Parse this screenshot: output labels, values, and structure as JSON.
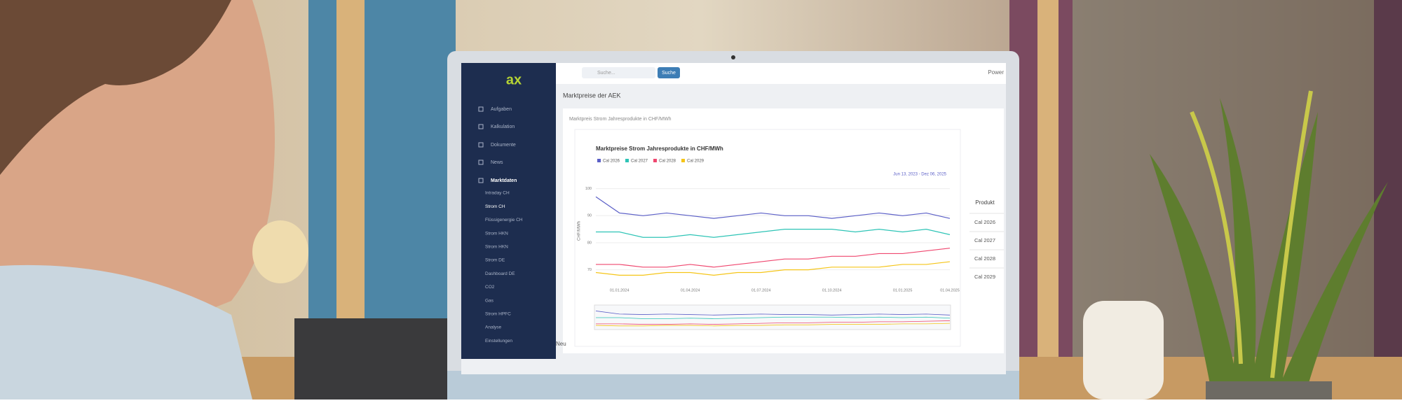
{
  "sidebar": {
    "logo": "ax",
    "items": [
      "Aufgaben",
      "Kalkulation",
      "Dokumente",
      "News",
      "Marktdaten"
    ],
    "subitems": [
      "Intraday CH",
      "Strom CH",
      "Flüssigenergie CH",
      "Strom HKN",
      "Strom HKN",
      "Strom DE",
      "Dashboard DE",
      "CO2",
      "Gas",
      "Strom HPFC",
      "Analyse",
      "Einstellungen"
    ]
  },
  "topbar": {
    "search_placeholder": "Suche...",
    "search_button": "Suche",
    "brand": "Power"
  },
  "page": {
    "title": "Marktpreise der AEK",
    "card_title": "Marktpreis Strom Jahresprodukte in CHF/MWh",
    "footer": "Neu"
  },
  "table": {
    "header": "Produkt",
    "rows": [
      "Cal 2026",
      "Cal 2027",
      "Cal 2028",
      "Cal 2029"
    ]
  },
  "chart_data": {
    "type": "line",
    "title": "Marktpreise Strom Jahresprodukte in CHF/MWh",
    "y_label": "CHF/MWh",
    "date_range": "Jun 13, 2023 - Dez 06, 2025",
    "categories": [
      null,
      "01.01.2024",
      null,
      null,
      "01.04.2024",
      null,
      null,
      "01.07.2024",
      null,
      null,
      "01.10.2024",
      null,
      null,
      "01.01.2025",
      null,
      "01.04.2025"
    ],
    "series": [
      {
        "name": "Cal 2026",
        "color": "#5b5fc7",
        "values": [
          97,
          91,
          90,
          91,
          90,
          89,
          90,
          91,
          90,
          90,
          89,
          90,
          91,
          90,
          91,
          89
        ]
      },
      {
        "name": "Cal 2027",
        "color": "#2ec4b6",
        "values": [
          84,
          84,
          82,
          82,
          83,
          82,
          83,
          84,
          85,
          85,
          85,
          84,
          85,
          84,
          85,
          83
        ]
      },
      {
        "name": "Cal 2028",
        "color": "#ef476f",
        "values": [
          72,
          72,
          71,
          71,
          72,
          71,
          72,
          73,
          74,
          74,
          75,
          75,
          76,
          76,
          77,
          78
        ]
      },
      {
        "name": "Cal 2029",
        "color": "#f5c518",
        "values": [
          69,
          68,
          68,
          69,
          69,
          68,
          69,
          69,
          70,
          70,
          71,
          71,
          71,
          72,
          72,
          73
        ]
      }
    ],
    "ylim": [
      65,
      103
    ],
    "yticks": [
      70,
      80,
      90,
      100
    ],
    "grid": true
  }
}
